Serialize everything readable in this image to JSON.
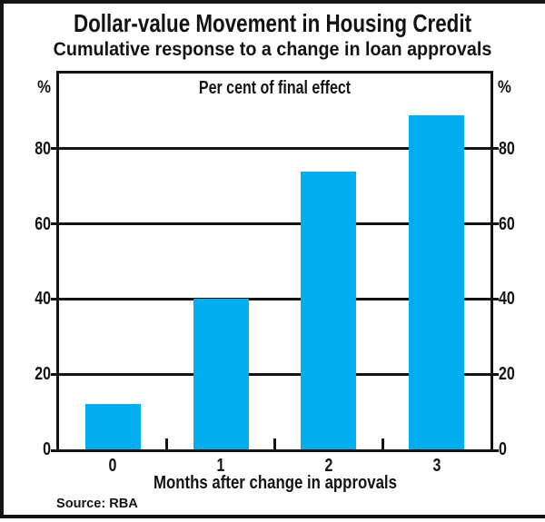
{
  "figure": {
    "unit_left": "%",
    "unit_right": "%"
  },
  "chart_data": {
    "type": "bar",
    "title": "Dollar-value Movement in Housing Credit",
    "subtitle": "Cumulative response to a change in loan approvals",
    "inner_label": "Per cent of final effect",
    "categories": [
      "0",
      "1",
      "2",
      "3"
    ],
    "values": [
      12,
      40,
      74,
      89
    ],
    "xlabel": "Months after change in approvals",
    "ylabel": "%",
    "ylim": [
      0,
      100
    ],
    "yticks": [
      0,
      20,
      40,
      60,
      80
    ],
    "grid": "horizontal-full-width",
    "legend": "none",
    "bar_color": "#00ADEE",
    "axis_color": "#131313",
    "source": "Source: RBA"
  }
}
